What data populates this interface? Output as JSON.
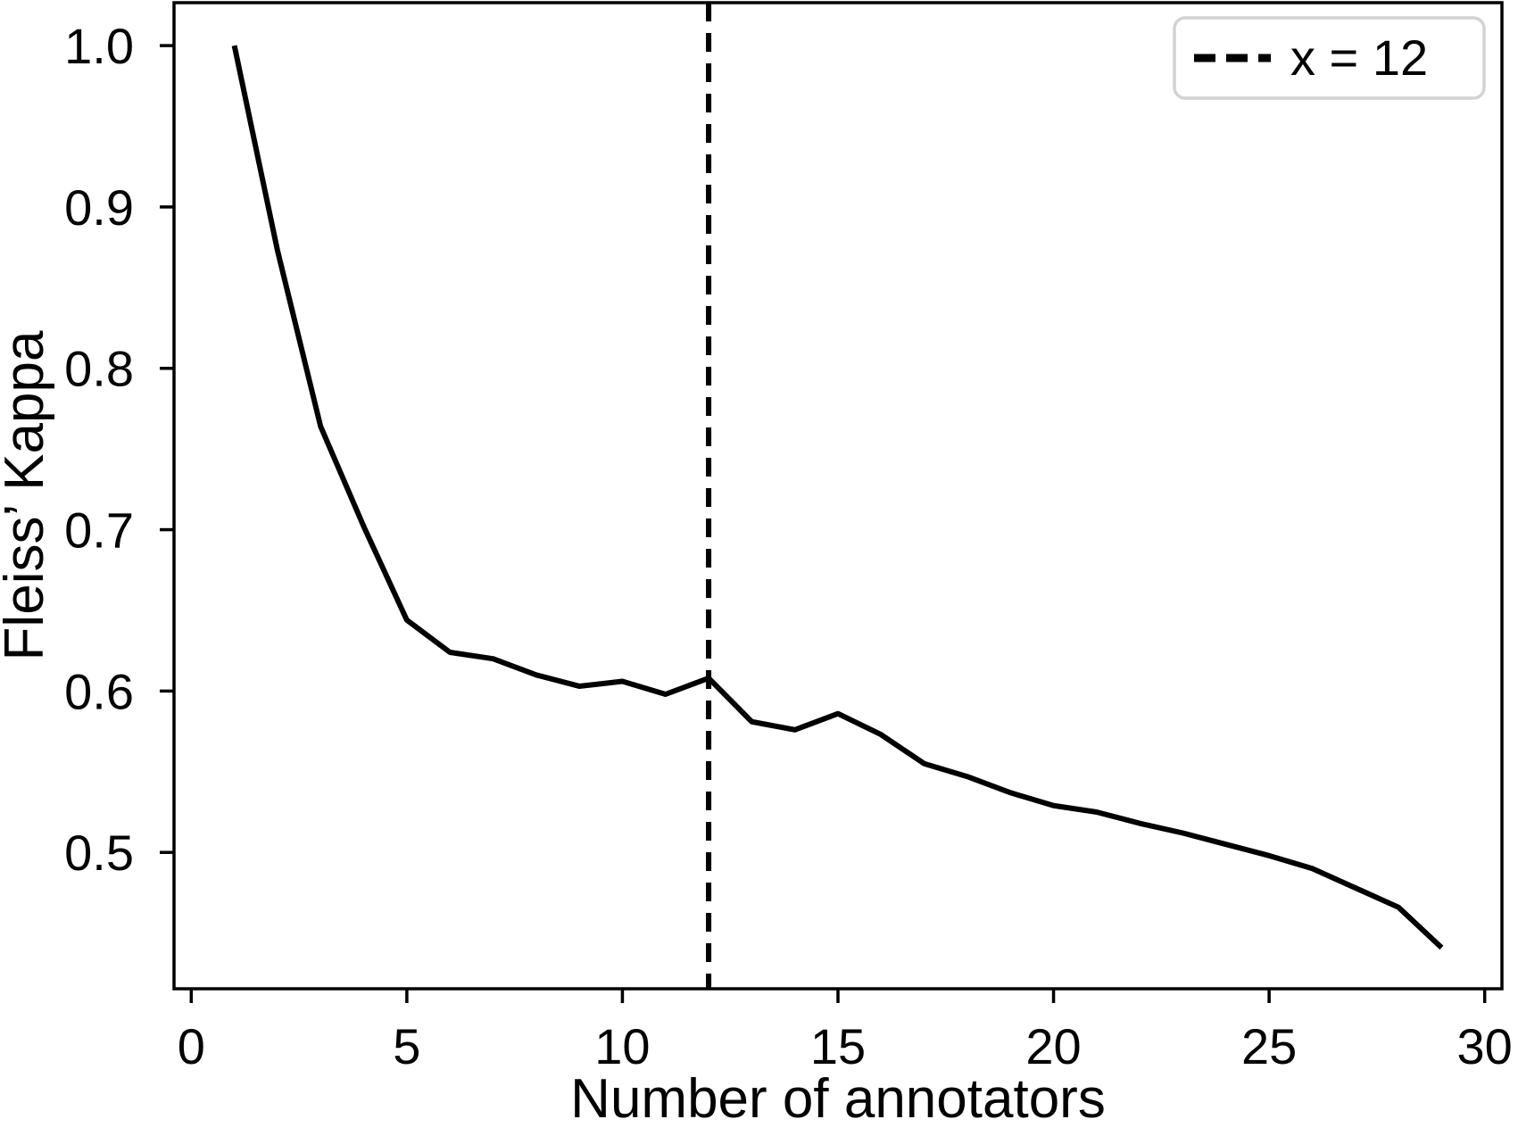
{
  "figure": {
    "background": "#ffffff"
  },
  "chart_data": {
    "type": "line",
    "title": "",
    "xlabel": "Number of annotators",
    "ylabel": "Fleiss’ Kappa",
    "x": [
      1,
      2,
      3,
      4,
      5,
      6,
      7,
      8,
      9,
      10,
      11,
      12,
      13,
      14,
      15,
      16,
      17,
      18,
      19,
      20,
      21,
      22,
      23,
      24,
      25,
      26,
      27,
      28,
      29
    ],
    "series": [
      {
        "name": "fleiss-kappa",
        "values": [
          1.0,
          0.873,
          0.764,
          0.702,
          0.644,
          0.624,
          0.62,
          0.61,
          0.603,
          0.606,
          0.598,
          0.608,
          0.581,
          0.576,
          0.586,
          0.573,
          0.555,
          0.547,
          0.537,
          0.529,
          0.525,
          0.518,
          0.512,
          0.505,
          0.498,
          0.49,
          0.478,
          0.466,
          0.441
        ],
        "color": "#000000",
        "line_width": 6,
        "style": "solid"
      }
    ],
    "reference_line": {
      "axis": "x",
      "value": 12,
      "label": "x = 12",
      "color": "#000000",
      "style": "dashed",
      "line_width": 6
    },
    "xlim": [
      -0.4,
      30.4
    ],
    "ylim": [
      0.4155,
      1.0266
    ],
    "xticks": [
      0,
      5,
      10,
      15,
      20,
      25,
      30
    ],
    "yticks": [
      0.5,
      0.6,
      0.7,
      0.8,
      0.9,
      1.0
    ],
    "grid": false,
    "legend": {
      "position": "upper right",
      "border_color": "#d3d3d3",
      "background": "#ffffff",
      "entries": [
        {
          "label": "x = 12",
          "style": "dashed",
          "color": "#000000"
        }
      ]
    },
    "axis_color": "#000000"
  }
}
